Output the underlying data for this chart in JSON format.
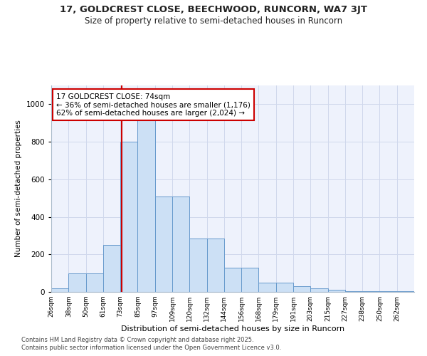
{
  "title1": "17, GOLDCREST CLOSE, BEECHWOOD, RUNCORN, WA7 3JT",
  "title2": "Size of property relative to semi-detached houses in Runcorn",
  "xlabel": "Distribution of semi-detached houses by size in Runcorn",
  "ylabel": "Number of semi-detached properties",
  "bin_labels": [
    "26sqm",
    "38sqm",
    "50sqm",
    "61sqm",
    "73sqm",
    "85sqm",
    "97sqm",
    "109sqm",
    "120sqm",
    "132sqm",
    "144sqm",
    "156sqm",
    "168sqm",
    "179sqm",
    "191sqm",
    "203sqm",
    "215sqm",
    "227sqm",
    "238sqm",
    "250sqm",
    "262sqm"
  ],
  "bar_heights": [
    20,
    100,
    100,
    250,
    800,
    950,
    510,
    510,
    285,
    285,
    130,
    130,
    50,
    50,
    30,
    20,
    10,
    5,
    5,
    2,
    2
  ],
  "bar_color": "#cce0f5",
  "bar_edge_color": "#6699cc",
  "marker_line_color": "#cc0000",
  "annotation_box_color": "#cc0000",
  "annotation_text": "17 GOLDCREST CLOSE: 74sqm\n← 36% of semi-detached houses are smaller (1,176)\n62% of semi-detached houses are larger (2,024) →",
  "ylim": [
    0,
    1100
  ],
  "yticks": [
    0,
    200,
    400,
    600,
    800,
    1000
  ],
  "footer1": "Contains HM Land Registry data © Crown copyright and database right 2025.",
  "footer2": "Contains public sector information licensed under the Open Government Licence v3.0.",
  "bg_color": "#eef2fc",
  "grid_color": "#d0d8ec"
}
